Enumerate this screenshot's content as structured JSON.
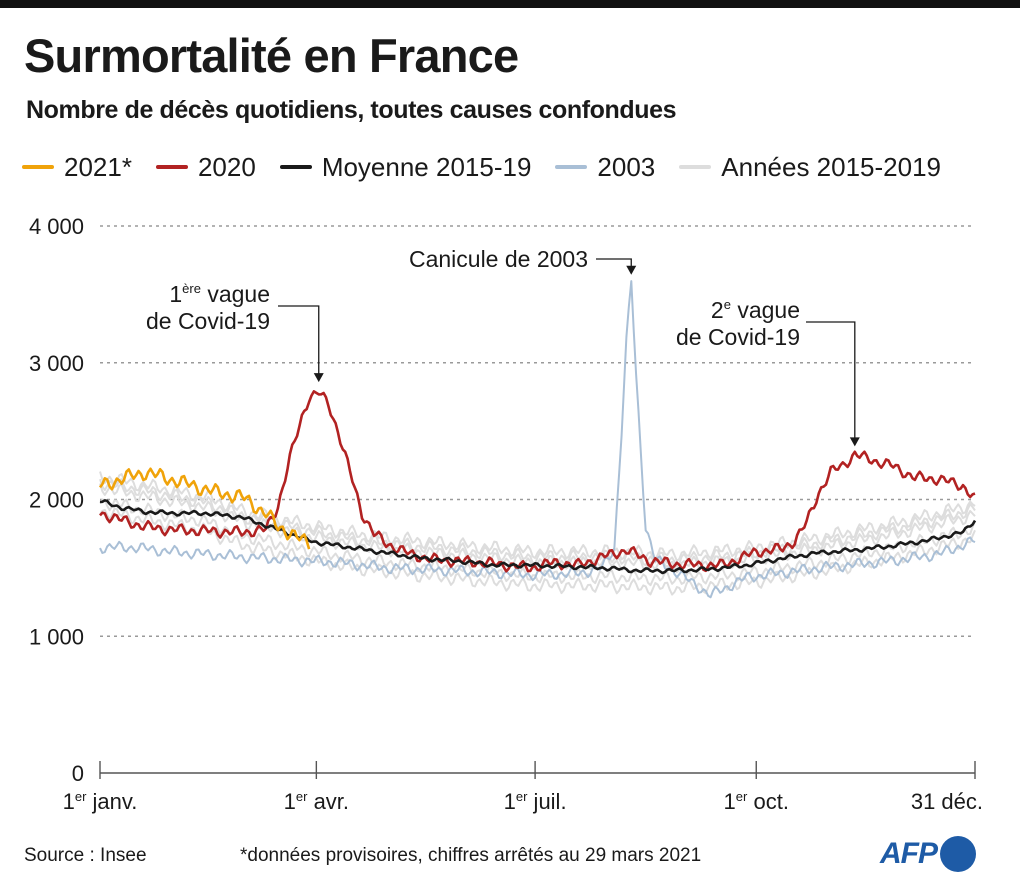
{
  "title": "Surmortalité en France",
  "subtitle": "Nombre de décès quotidiens, toutes causes confondues",
  "colors": {
    "y2021": "#f0a30a",
    "y2020": "#b22222",
    "mean": "#1a1a1a",
    "y2003": "#a9bfd6",
    "years": "#dddddd",
    "brand": "#1e5ba6"
  },
  "legend": [
    {
      "label": "2021*",
      "color": "#f0a30a"
    },
    {
      "label": "2020",
      "color": "#b22222"
    },
    {
      "label": "Moyenne 2015-19",
      "color": "#1a1a1a"
    },
    {
      "label": "2003",
      "color": "#a9bfd6"
    },
    {
      "label": "Années  2015-2019",
      "color": "#dddddd"
    }
  ],
  "footer": {
    "source": "Source : Insee",
    "note": "*données provisoires, chiffres arrêtés au 29 mars 2021",
    "logo": "AFP"
  },
  "chart_data": {
    "type": "line",
    "ylim": [
      0,
      4000
    ],
    "xlim": [
      1,
      365
    ],
    "grid": true,
    "y_ticks": [
      {
        "value": 0,
        "label": "0"
      },
      {
        "value": 1000,
        "label": "1 000"
      },
      {
        "value": 2000,
        "label": "2 000"
      },
      {
        "value": 3000,
        "label": "3 000"
      },
      {
        "value": 4000,
        "label": "4 000"
      }
    ],
    "x_ticks": [
      {
        "day": 1,
        "sup": "er",
        "text": "janv."
      },
      {
        "day": 91,
        "sup": "er",
        "text": "avr."
      },
      {
        "day": 182,
        "sup": "er",
        "text": "juil."
      },
      {
        "day": 274,
        "sup": "er",
        "text": "oct."
      },
      {
        "day": 365,
        "sup": "",
        "text": "31 déc."
      }
    ],
    "series": [
      {
        "key": "years",
        "label": "Années  2015-2019",
        "copies": 5,
        "x": [
          1,
          15,
          30,
          45,
          60,
          80,
          100,
          120,
          150,
          180,
          210,
          240,
          270,
          300,
          330,
          350,
          365
        ],
        "y": [
          2050,
          2000,
          1950,
          1900,
          1800,
          1720,
          1650,
          1600,
          1550,
          1500,
          1500,
          1480,
          1520,
          1600,
          1700,
          1780,
          1850
        ]
      },
      {
        "key": "y2003",
        "label": "2003",
        "x": [
          1,
          15,
          30,
          45,
          60,
          80,
          100,
          120,
          150,
          180,
          200,
          210,
          215,
          218,
          220,
          222,
          224,
          228,
          232,
          240,
          255,
          270,
          300,
          330,
          350,
          365
        ],
        "y": [
          1650,
          1650,
          1620,
          1600,
          1580,
          1560,
          1540,
          1500,
          1480,
          1450,
          1460,
          1500,
          1650,
          2500,
          3150,
          3600,
          2900,
          1800,
          1560,
          1480,
          1300,
          1430,
          1500,
          1550,
          1600,
          1700
        ]
      },
      {
        "key": "mean",
        "label": "Moyenne 2015-19",
        "x": [
          1,
          10,
          20,
          30,
          45,
          60,
          75,
          90,
          105,
          120,
          135,
          150,
          165,
          180,
          195,
          210,
          225,
          240,
          255,
          270,
          285,
          300,
          315,
          330,
          345,
          360,
          365
        ],
        "y": [
          1990,
          1940,
          1910,
          1900,
          1900,
          1870,
          1780,
          1690,
          1650,
          1610,
          1570,
          1550,
          1520,
          1520,
          1510,
          1500,
          1480,
          1480,
          1490,
          1520,
          1570,
          1610,
          1630,
          1660,
          1700,
          1760,
          1850
        ]
      },
      {
        "key": "y2020",
        "label": "2020",
        "x": [
          1,
          10,
          20,
          30,
          45,
          60,
          70,
          75,
          80,
          85,
          88,
          92,
          96,
          100,
          105,
          110,
          115,
          120,
          130,
          140,
          150,
          160,
          170,
          180,
          190,
          200,
          210,
          220,
          230,
          240,
          250,
          260,
          270,
          275,
          285,
          290,
          295,
          300,
          305,
          310,
          315,
          320,
          330,
          340,
          350,
          360,
          365
        ],
        "y": [
          1900,
          1850,
          1800,
          1780,
          1770,
          1760,
          1780,
          1950,
          2300,
          2600,
          2750,
          2780,
          2700,
          2500,
          2200,
          1900,
          1750,
          1680,
          1600,
          1560,
          1550,
          1540,
          1520,
          1500,
          1540,
          1520,
          1580,
          1630,
          1550,
          1530,
          1520,
          1520,
          1590,
          1620,
          1640,
          1700,
          1830,
          2050,
          2200,
          2250,
          2330,
          2300,
          2250,
          2160,
          2150,
          2100,
          2000
        ]
      },
      {
        "key": "y2021",
        "label": "2021*",
        "x": [
          1,
          10,
          20,
          30,
          40,
          50,
          60,
          70,
          75,
          80,
          85,
          88
        ],
        "y": [
          2100,
          2150,
          2200,
          2150,
          2100,
          2050,
          2020,
          1900,
          1800,
          1760,
          1700,
          1680
        ]
      }
    ],
    "annotations": [
      {
        "key": "vague1",
        "sup": "ère",
        "line1_a": "1",
        "line1_b": " vague",
        "line2": "de Covid-19",
        "day": 92,
        "value": 2800
      },
      {
        "key": "canicule",
        "text": "Canicule de 2003",
        "day": 222,
        "value": 3600
      },
      {
        "key": "vague2",
        "sup": "e",
        "line1_a": "2",
        "line1_b": " vague",
        "line2": "de Covid-19",
        "day": 315,
        "value": 2330
      }
    ]
  }
}
